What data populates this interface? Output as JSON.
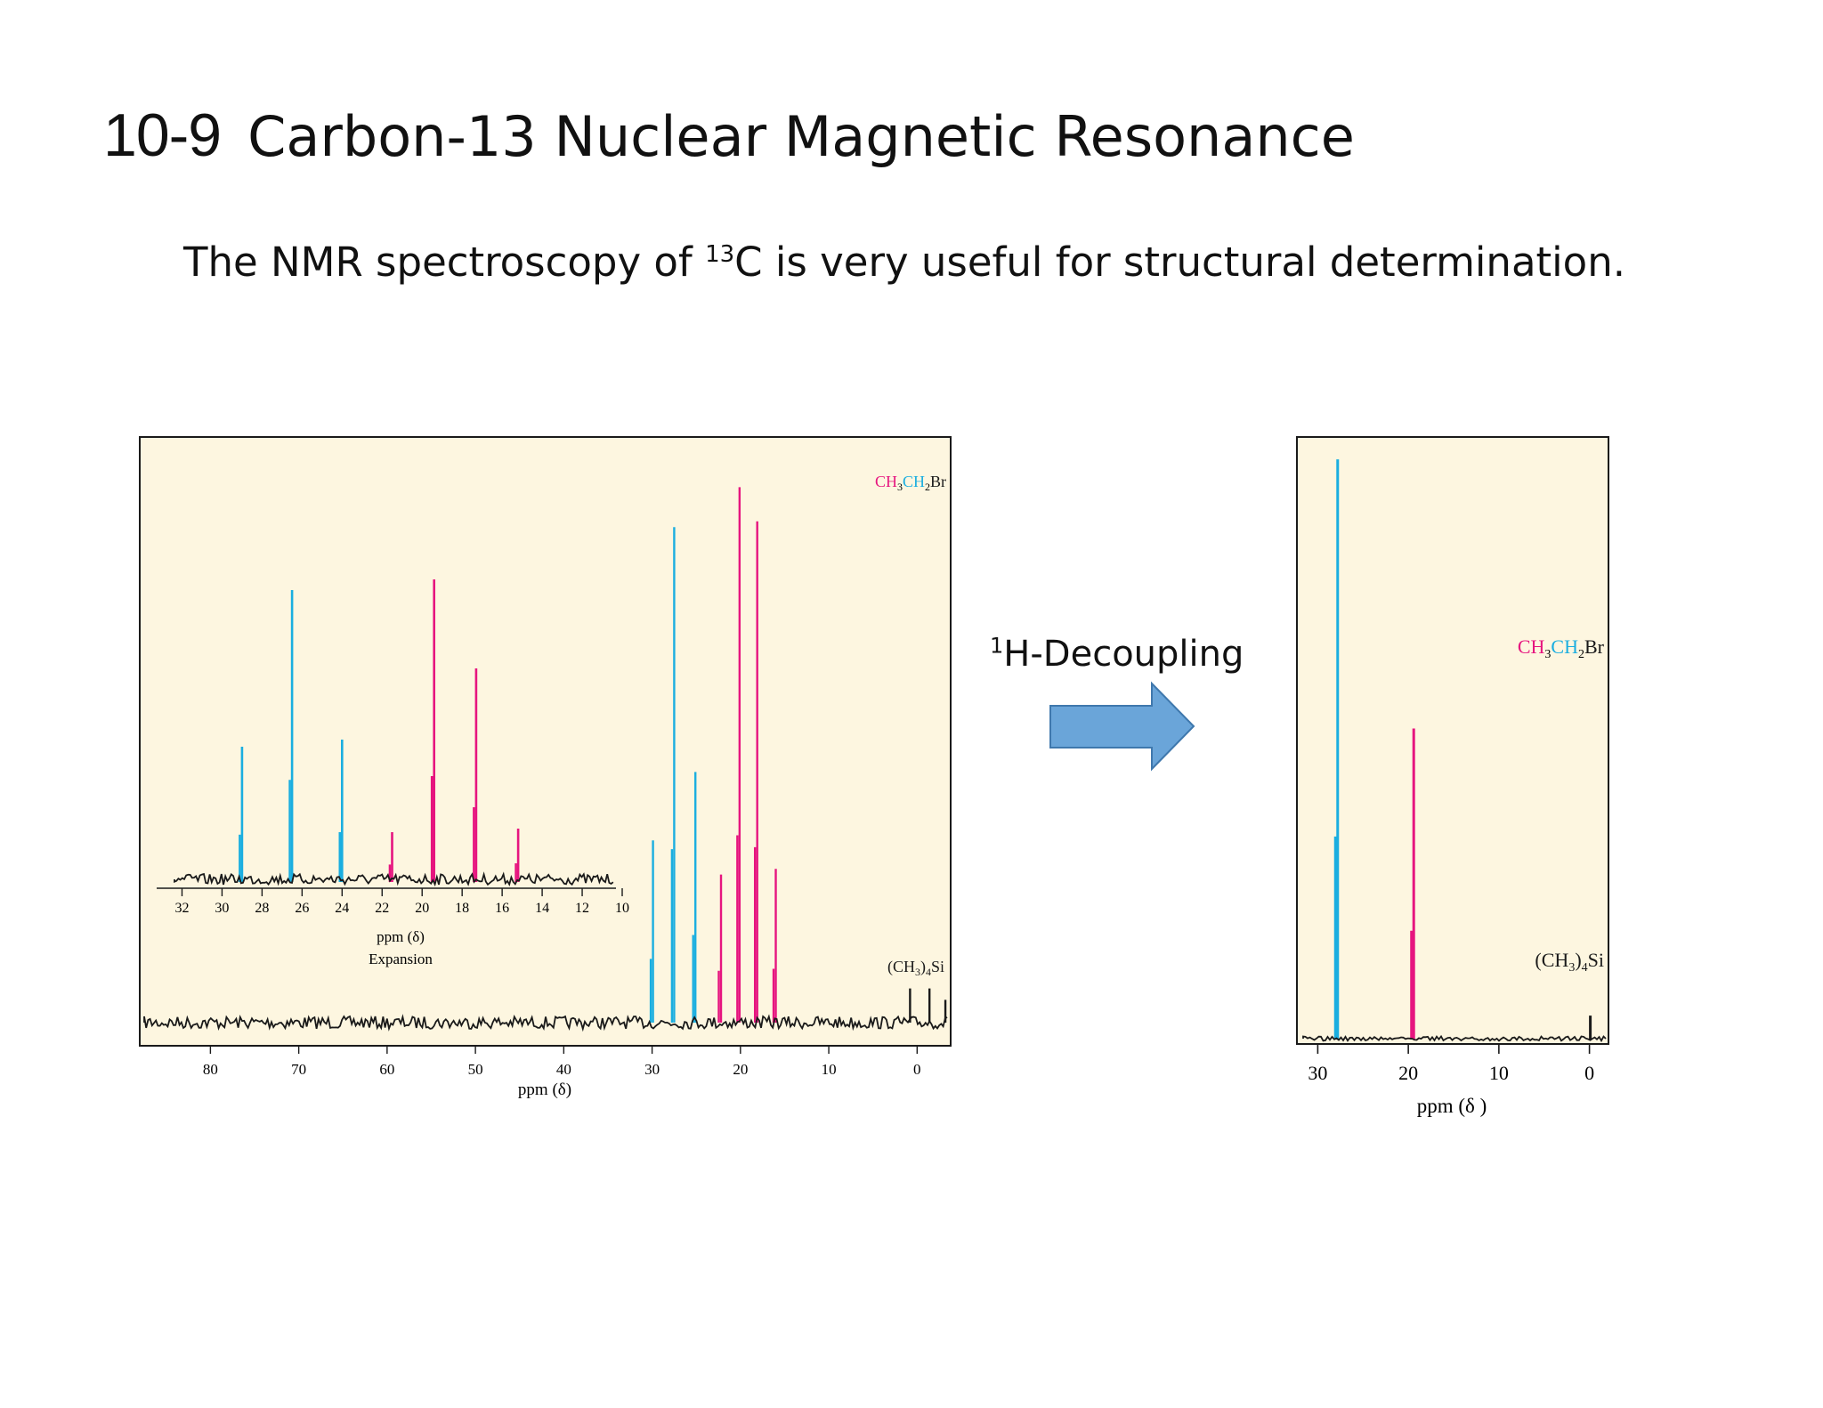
{
  "heading": {
    "number": "10-9",
    "title": "Carbon-13 Nuclear Magnetic Resonance"
  },
  "subtitle": {
    "before": "The NMR spectroscopy of ",
    "sup": "13",
    "after": "C is very useful for structural determination."
  },
  "decoupling": {
    "sup": "1",
    "label": "H-Decoupling",
    "arrow_color": "#6aa5d9"
  },
  "colors": {
    "ch2_cyan": "#1aaee0",
    "ch3_magenta": "#e6157f",
    "baseline": "#1a1a1a",
    "panel_bg": "#fdf6e0"
  },
  "chart_data": [
    {
      "type": "line",
      "name": "coupled spectrum",
      "compound": {
        "p1": "C",
        "p2": "H",
        "s1": "3",
        "p3": "C",
        "p4": "H",
        "s2": "2",
        "p5": "Br"
      },
      "reference": {
        "p1": "(CH",
        "s1": "3",
        "p2": ")",
        "s2": "4",
        "p3": "Si"
      },
      "xlabel": "ppm (δ)",
      "xlim": [
        88,
        -4
      ],
      "xticks": [
        80,
        70,
        60,
        50,
        40,
        30,
        20,
        10,
        0
      ],
      "ylim": [
        0,
        1
      ],
      "peaks": [
        {
          "x": 30.0,
          "y": 0.32,
          "group": "ch2"
        },
        {
          "x": 27.6,
          "y": 0.87,
          "group": "ch2"
        },
        {
          "x": 25.2,
          "y": 0.44,
          "group": "ch2"
        },
        {
          "x": 22.3,
          "y": 0.26,
          "group": "ch3"
        },
        {
          "x": 20.2,
          "y": 0.94,
          "group": "ch3"
        },
        {
          "x": 18.2,
          "y": 0.88,
          "group": "ch3"
        },
        {
          "x": 16.1,
          "y": 0.27,
          "group": "ch3"
        },
        {
          "x": 0.9,
          "y": 0.06,
          "group": "ref"
        },
        {
          "x": -1.3,
          "y": 0.06,
          "group": "ref"
        },
        {
          "x": -3.1,
          "y": 0.04,
          "group": "ref"
        }
      ],
      "inset": {
        "xlabel": "ppm (δ)",
        "caption": "Expansion",
        "xlim": [
          33,
          10
        ],
        "xticks": [
          32,
          30,
          28,
          26,
          24,
          22,
          20,
          18,
          16,
          14,
          12,
          10
        ],
        "peaks": [
          {
            "x": 29.0,
            "y": 0.38,
            "group": "ch2"
          },
          {
            "x": 26.5,
            "y": 0.82,
            "group": "ch2"
          },
          {
            "x": 24.0,
            "y": 0.4,
            "group": "ch2"
          },
          {
            "x": 21.5,
            "y": 0.14,
            "group": "ch3"
          },
          {
            "x": 19.4,
            "y": 0.85,
            "group": "ch3"
          },
          {
            "x": 17.3,
            "y": 0.6,
            "group": "ch3"
          },
          {
            "x": 15.2,
            "y": 0.15,
            "group": "ch3"
          }
        ]
      }
    },
    {
      "type": "line",
      "name": "decoupled spectrum",
      "compound": {
        "p1": "C",
        "p2": "H",
        "s1": "3",
        "p3": "C",
        "p4": "H",
        "s2": "2",
        "p5": "Br"
      },
      "reference": {
        "p1": "(CH",
        "s1": "3",
        "p2": ")",
        "s2": "4",
        "p3": "Si"
      },
      "xlabel": "ppm (δ )",
      "xlim": [
        32.3,
        -2.3
      ],
      "xticks": [
        30,
        20,
        10,
        0
      ],
      "ylim": [
        0,
        1
      ],
      "peaks": [
        {
          "x": 27.9,
          "y": 0.97,
          "group": "ch2"
        },
        {
          "x": 19.5,
          "y": 0.52,
          "group": "ch3"
        },
        {
          "x": 0.0,
          "y": 0.04,
          "group": "ref"
        }
      ]
    }
  ]
}
